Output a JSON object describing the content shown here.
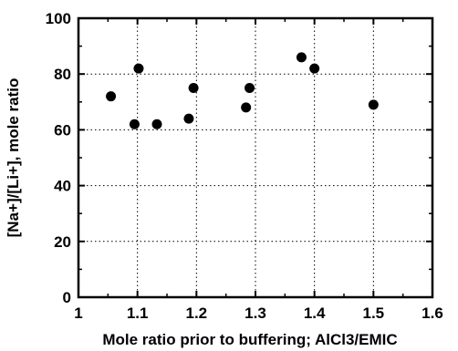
{
  "chart_data": {
    "type": "scatter",
    "title": "",
    "xlabel": "Mole ratio prior to buffering; AlCl3/EMIC",
    "ylabel": "[Na+]/[Li+], mole ratio",
    "xlim": [
      1,
      1.6
    ],
    "ylim": [
      0,
      100
    ],
    "x_ticks": [
      1,
      1.1,
      1.2,
      1.3,
      1.4,
      1.5,
      1.6
    ],
    "x_tick_labels": [
      "1",
      "1.1",
      "1.2",
      "1.3",
      "1.4",
      "1.5",
      "1.6"
    ],
    "y_ticks": [
      0,
      20,
      40,
      60,
      80,
      100
    ],
    "y_tick_labels": [
      "0",
      "20",
      "40",
      "60",
      "80",
      "100"
    ],
    "grid": true,
    "legend": "none",
    "marker_color": "#000000",
    "series": [
      {
        "points": [
          {
            "x": 1.055,
            "y": 72
          },
          {
            "x": 1.095,
            "y": 62
          },
          {
            "x": 1.102,
            "y": 82
          },
          {
            "x": 1.133,
            "y": 62
          },
          {
            "x": 1.187,
            "y": 64
          },
          {
            "x": 1.195,
            "y": 75
          },
          {
            "x": 1.284,
            "y": 68
          },
          {
            "x": 1.29,
            "y": 75
          },
          {
            "x": 1.378,
            "y": 86
          },
          {
            "x": 1.4,
            "y": 82
          },
          {
            "x": 1.5,
            "y": 69
          }
        ]
      }
    ]
  }
}
